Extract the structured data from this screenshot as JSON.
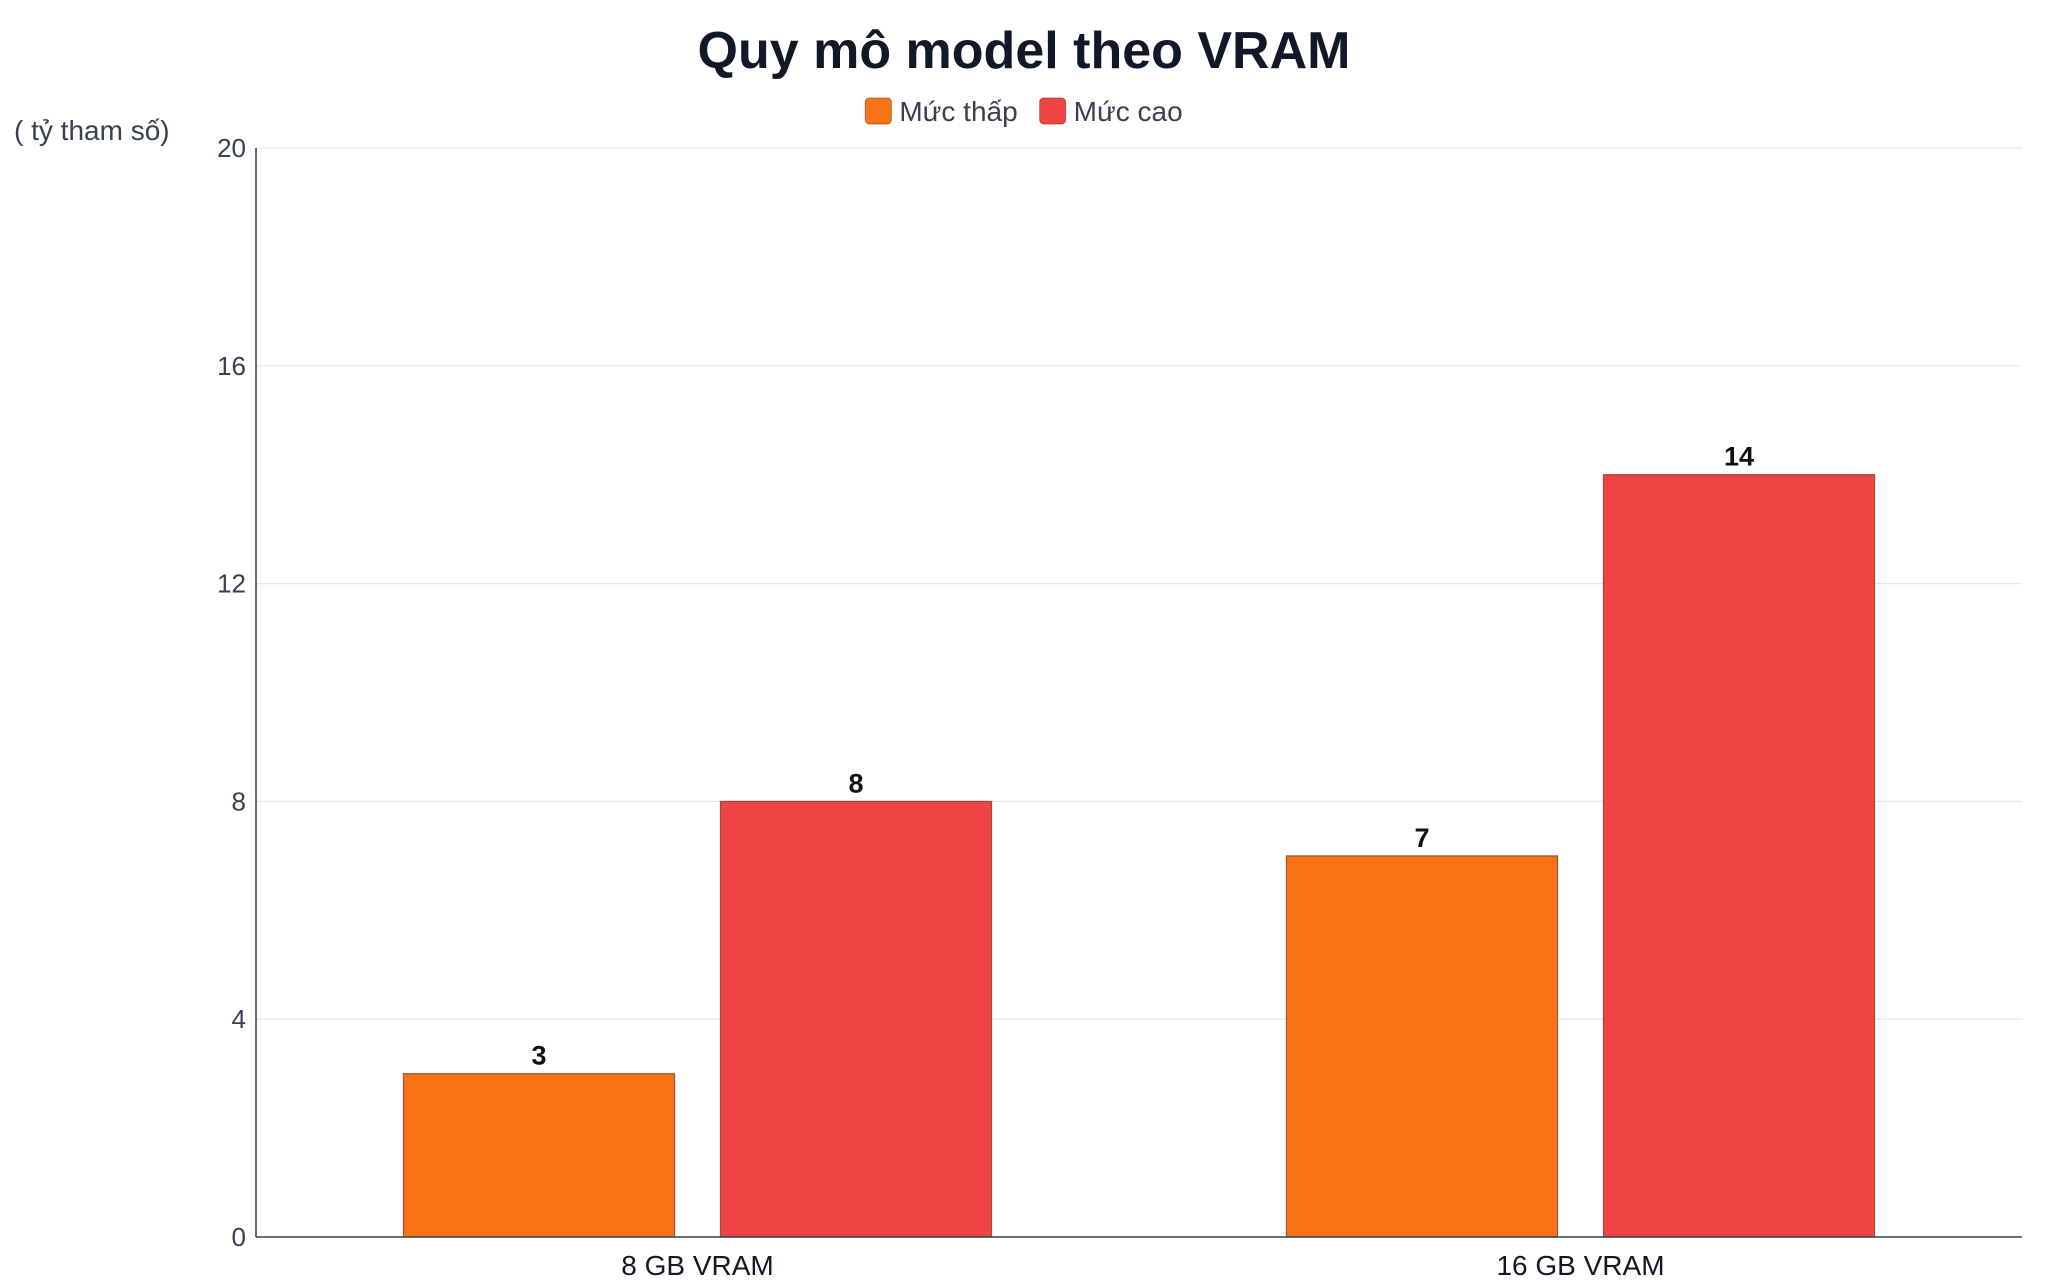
{
  "chart_data": {
    "type": "bar",
    "title": "Quy mô model theo VRAM",
    "ylabel": "( tỷ tham số)",
    "xlabel": "",
    "categories": [
      "8 GB VRAM",
      "16 GB VRAM"
    ],
    "series": [
      {
        "name": "Mức thấp",
        "color": "#f97316",
        "values": [
          3,
          7
        ]
      },
      {
        "name": "Mức cao",
        "color": "#ef4444",
        "values": [
          8,
          14
        ]
      }
    ],
    "ylim": [
      0,
      20
    ],
    "yticks": [
      0,
      4,
      8,
      12,
      16,
      20
    ],
    "grid": true,
    "legend_position": "top-center",
    "data_labels": true
  }
}
